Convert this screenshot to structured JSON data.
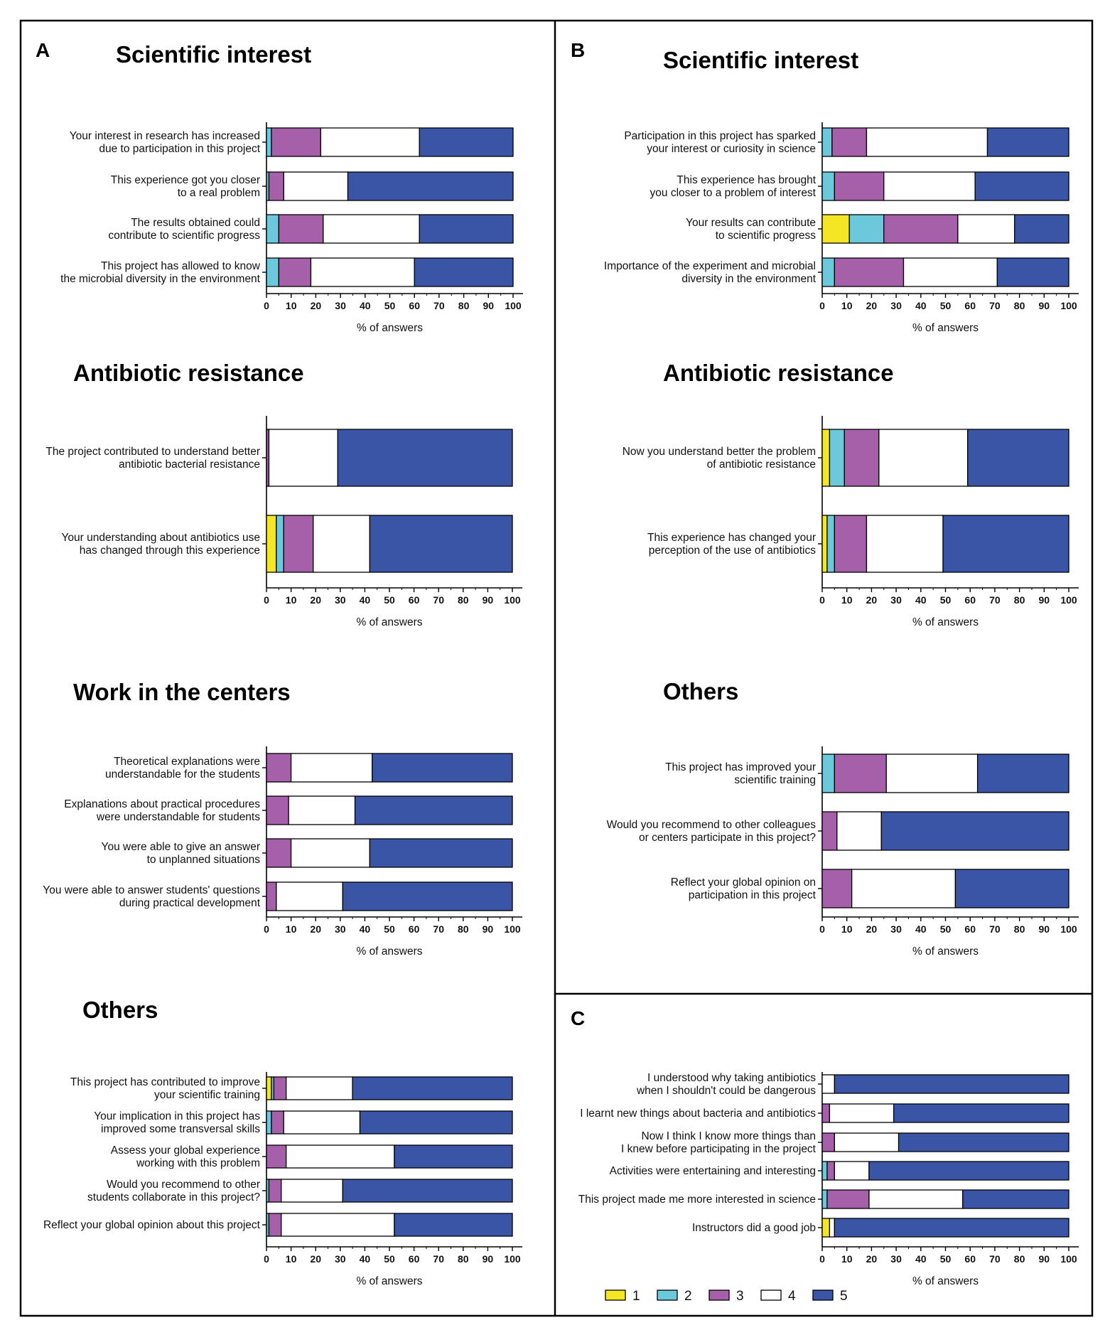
{
  "figure": {
    "panels": [
      "A",
      "B",
      "C"
    ],
    "legend": [
      {
        "key": "1",
        "color": "#f5e625"
      },
      {
        "key": "2",
        "color": "#6cc9dc"
      },
      {
        "key": "3",
        "color": "#a660aa"
      },
      {
        "key": "4",
        "color": "#ffffff"
      },
      {
        "key": "5",
        "color": "#3a55a6"
      }
    ]
  },
  "chart_data": [
    {
      "panel": "A",
      "type": "bar",
      "stacked": true,
      "orientation": "horizontal",
      "title": "Scientific interest",
      "xlabel": "% of answers",
      "xlim": [
        0,
        100
      ],
      "ticks": [
        0,
        10,
        20,
        30,
        40,
        50,
        60,
        70,
        80,
        90,
        100
      ],
      "categories": [
        [
          "Your interest in research has increased",
          "due to participation in this project"
        ],
        [
          "This experience got you closer",
          "to a real problem"
        ],
        [
          "The results obtained could",
          "contribute to scientific progress"
        ],
        [
          "This project has allowed to know",
          "the microbial diversity in the environment"
        ]
      ],
      "values": [
        [
          0,
          2,
          20,
          40,
          38
        ],
        [
          0,
          1,
          6,
          26,
          67
        ],
        [
          0,
          5,
          18,
          39,
          38
        ],
        [
          0,
          5,
          13,
          42,
          40
        ]
      ]
    },
    {
      "panel": "A",
      "type": "bar",
      "stacked": true,
      "orientation": "horizontal",
      "title": "Antibiotic resistance",
      "xlabel": "% of answers",
      "xlim": [
        0,
        100
      ],
      "ticks": [
        0,
        10,
        20,
        30,
        40,
        50,
        60,
        70,
        80,
        90,
        100
      ],
      "categories": [
        [
          "The project contributed to understand better",
          "antibiotic bacterial resistance"
        ],
        [
          "Your understanding about antibiotics use",
          "has changed through this experience"
        ]
      ],
      "values": [
        [
          0,
          0,
          1,
          28,
          71
        ],
        [
          4,
          3,
          12,
          23,
          58
        ]
      ]
    },
    {
      "panel": "A",
      "type": "bar",
      "stacked": true,
      "orientation": "horizontal",
      "title": "Work in the centers",
      "xlabel": "% of answers",
      "xlim": [
        0,
        100
      ],
      "ticks": [
        0,
        10,
        20,
        30,
        40,
        50,
        60,
        70,
        80,
        90,
        100
      ],
      "categories": [
        [
          "Theoretical explanations were",
          "understandable for the students"
        ],
        [
          "Explanations about practical procedures",
          "were understandable for students"
        ],
        [
          "You were able to give an answer",
          "to unplanned situations"
        ],
        [
          "You were able to answer students' questions",
          "during practical development"
        ]
      ],
      "values": [
        [
          0,
          0,
          10,
          33,
          57
        ],
        [
          0,
          0,
          9,
          27,
          64
        ],
        [
          0,
          0,
          10,
          32,
          58
        ],
        [
          0,
          0,
          4,
          27,
          69
        ]
      ]
    },
    {
      "panel": "A",
      "type": "bar",
      "stacked": true,
      "orientation": "horizontal",
      "title": "Others",
      "xlabel": "% of answers",
      "xlim": [
        0,
        100
      ],
      "ticks": [
        0,
        10,
        20,
        30,
        40,
        50,
        60,
        70,
        80,
        90,
        100
      ],
      "categories": [
        [
          "This project has contributed to improve",
          "your scientific training"
        ],
        [
          "Your implication in this project has",
          "improved some transversal skills"
        ],
        [
          "Assess your global experience",
          "working with this problem"
        ],
        [
          "Would you recommend to other",
          "students collaborate in this project?"
        ],
        [
          "Reflect your global opinion about this project"
        ]
      ],
      "values": [
        [
          2,
          1,
          5,
          27,
          65
        ],
        [
          0,
          2,
          5,
          31,
          62
        ],
        [
          0,
          0,
          8,
          44,
          48
        ],
        [
          0,
          1,
          5,
          25,
          69
        ],
        [
          0,
          1,
          5,
          46,
          48
        ]
      ]
    },
    {
      "panel": "B",
      "type": "bar",
      "stacked": true,
      "orientation": "horizontal",
      "title": "Scientific interest",
      "xlabel": "% of answers",
      "xlim": [
        0,
        100
      ],
      "ticks": [
        0,
        10,
        20,
        30,
        40,
        50,
        60,
        70,
        80,
        90,
        100
      ],
      "categories": [
        [
          "Participation in this project has sparked",
          "your interest or curiosity in science"
        ],
        [
          "This experience has brought",
          "you closer to a problem of interest"
        ],
        [
          "Your results can contribute",
          "to scientific progress"
        ],
        [
          "Importance of the experiment and microbial",
          "diversity in the environment"
        ]
      ],
      "values": [
        [
          0,
          4,
          14,
          49,
          33
        ],
        [
          0,
          5,
          20,
          37,
          38
        ],
        [
          11,
          14,
          30,
          23,
          22
        ],
        [
          0,
          5,
          28,
          38,
          29
        ]
      ]
    },
    {
      "panel": "B",
      "type": "bar",
      "stacked": true,
      "orientation": "horizontal",
      "title": "Antibiotic resistance",
      "xlabel": "% of answers",
      "xlim": [
        0,
        100
      ],
      "ticks": [
        0,
        10,
        20,
        30,
        40,
        50,
        60,
        70,
        80,
        90,
        100
      ],
      "categories": [
        [
          "Now you understand better the problem",
          "of antibiotic resistance"
        ],
        [
          "This experience has changed your",
          "perception of the use of antibiotics"
        ]
      ],
      "values": [
        [
          3,
          6,
          14,
          36,
          41
        ],
        [
          2,
          3,
          13,
          31,
          51
        ]
      ]
    },
    {
      "panel": "B",
      "type": "bar",
      "stacked": true,
      "orientation": "horizontal",
      "title": "Others",
      "xlabel": "% of answers",
      "xlim": [
        0,
        100
      ],
      "ticks": [
        0,
        10,
        20,
        30,
        40,
        50,
        60,
        70,
        80,
        90,
        100
      ],
      "categories": [
        [
          "This project has improved your",
          "scientific training"
        ],
        [
          "Would you recommend to other colleagues",
          "or centers participate in this project?"
        ],
        [
          "Reflect your global opinion on",
          "participation in this project"
        ]
      ],
      "values": [
        [
          0,
          5,
          21,
          37,
          37
        ],
        [
          0,
          0,
          6,
          18,
          76
        ],
        [
          0,
          0,
          12,
          42,
          46
        ]
      ]
    },
    {
      "panel": "C",
      "type": "bar",
      "stacked": true,
      "orientation": "horizontal",
      "title": "",
      "xlabel": "% of answers",
      "xlim": [
        0,
        100
      ],
      "ticks": [
        0,
        10,
        20,
        30,
        40,
        50,
        60,
        70,
        80,
        90,
        100
      ],
      "categories": [
        [
          "I understood why taking antibiotics",
          "when I shouldn't could be dangerous"
        ],
        [
          "I learnt new things about bacteria and antibiotics"
        ],
        [
          "Now I think I know more things than",
          "I knew before participating in the project"
        ],
        [
          "Activities were entertaining and interesting"
        ],
        [
          "This project made me more interested in science"
        ],
        [
          "Instructors did a good job"
        ]
      ],
      "values": [
        [
          0,
          0,
          0,
          5,
          95
        ],
        [
          0,
          0,
          3,
          26,
          71
        ],
        [
          0,
          0,
          5,
          26,
          69
        ],
        [
          0,
          2,
          3,
          14,
          81
        ],
        [
          0,
          2,
          17,
          38,
          43
        ],
        [
          3,
          0,
          0,
          2,
          95
        ]
      ]
    }
  ]
}
